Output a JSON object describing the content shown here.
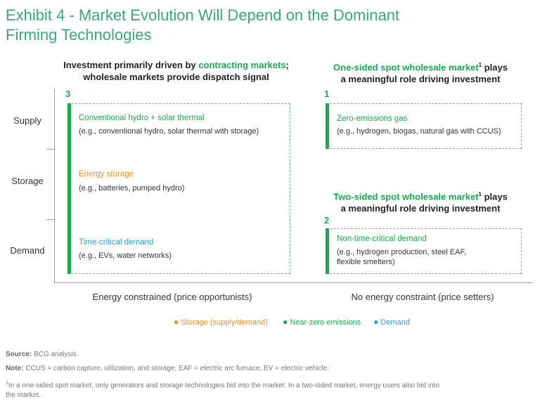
{
  "title": {
    "line1": "Exhibit 4 - Market Evolution Will Depend on the Dominant",
    "line2": "Firming Technologies"
  },
  "left_header": {
    "line1_pre": "Investment primarily driven by ",
    "line1_hl": "contracting markets",
    "line1_post": ";",
    "line2": "wholesale markets provide dispatch signal"
  },
  "right_header_top": {
    "hl": "One-sided spot wholesale market",
    "sup": "1",
    "post": " plays",
    "line2": "a meaningful role driving investment"
  },
  "right_header_bottom": {
    "hl": "Two-sided spot wholesale market",
    "sup": "1",
    "post": " plays",
    "line2": "a meaningful role driving investment"
  },
  "rows": [
    "Supply",
    "Storage",
    "Demand"
  ],
  "numbers": {
    "left": "3",
    "right_top": "1",
    "right_bottom": "2"
  },
  "left_items": [
    {
      "title": "Conventional hydro + solar thermal",
      "sub": "(e.g., conventional hydro, solar thermal with storage)",
      "color": "#1aa84f"
    },
    {
      "title": "Energy storage",
      "sub": "(e.g., batteries, pumped hydro)",
      "color": "#e8912b"
    },
    {
      "title": "Time-critical demand",
      "sub": "(e.g., EVs, water networks)",
      "color": "#2a9fcf"
    }
  ],
  "right_top_item": {
    "title": "Zero-emissions gas",
    "sub": "(e.g., hydrogen, biogas, natural gas with CCUS)",
    "color": "#1aa84f"
  },
  "right_bottom_item": {
    "title": "Non-time-critical demand",
    "sub1": "(e.g., hydrogen production, steel EAF,",
    "sub2": "flexible smelters)",
    "color": "#1aa84f"
  },
  "xlabels": {
    "left": "Energy constrained (price opportunists)",
    "right": "No energy constraint (price setters)"
  },
  "legend": [
    {
      "label": "Storage (supply/demand)",
      "color": "#e8912b"
    },
    {
      "label": "Near-zero emissions",
      "color": "#1aa84f"
    },
    {
      "label": "Demand",
      "color": "#2a9fcf"
    }
  ],
  "footer": {
    "source_label": "Source:",
    "source_text": " BCG analysis.",
    "note_label": "Note:",
    "note_text": " CCUS = carbon capture, utilization, and storage; EAF = electric arc furnace; EV = electric vehicle.",
    "fn_sup": "1",
    "fn_line1": "In a one-sided spot market, only generators and storage technologies bid into the market. In a two-sided market, energy users also bid into",
    "fn_line2": "the market."
  }
}
